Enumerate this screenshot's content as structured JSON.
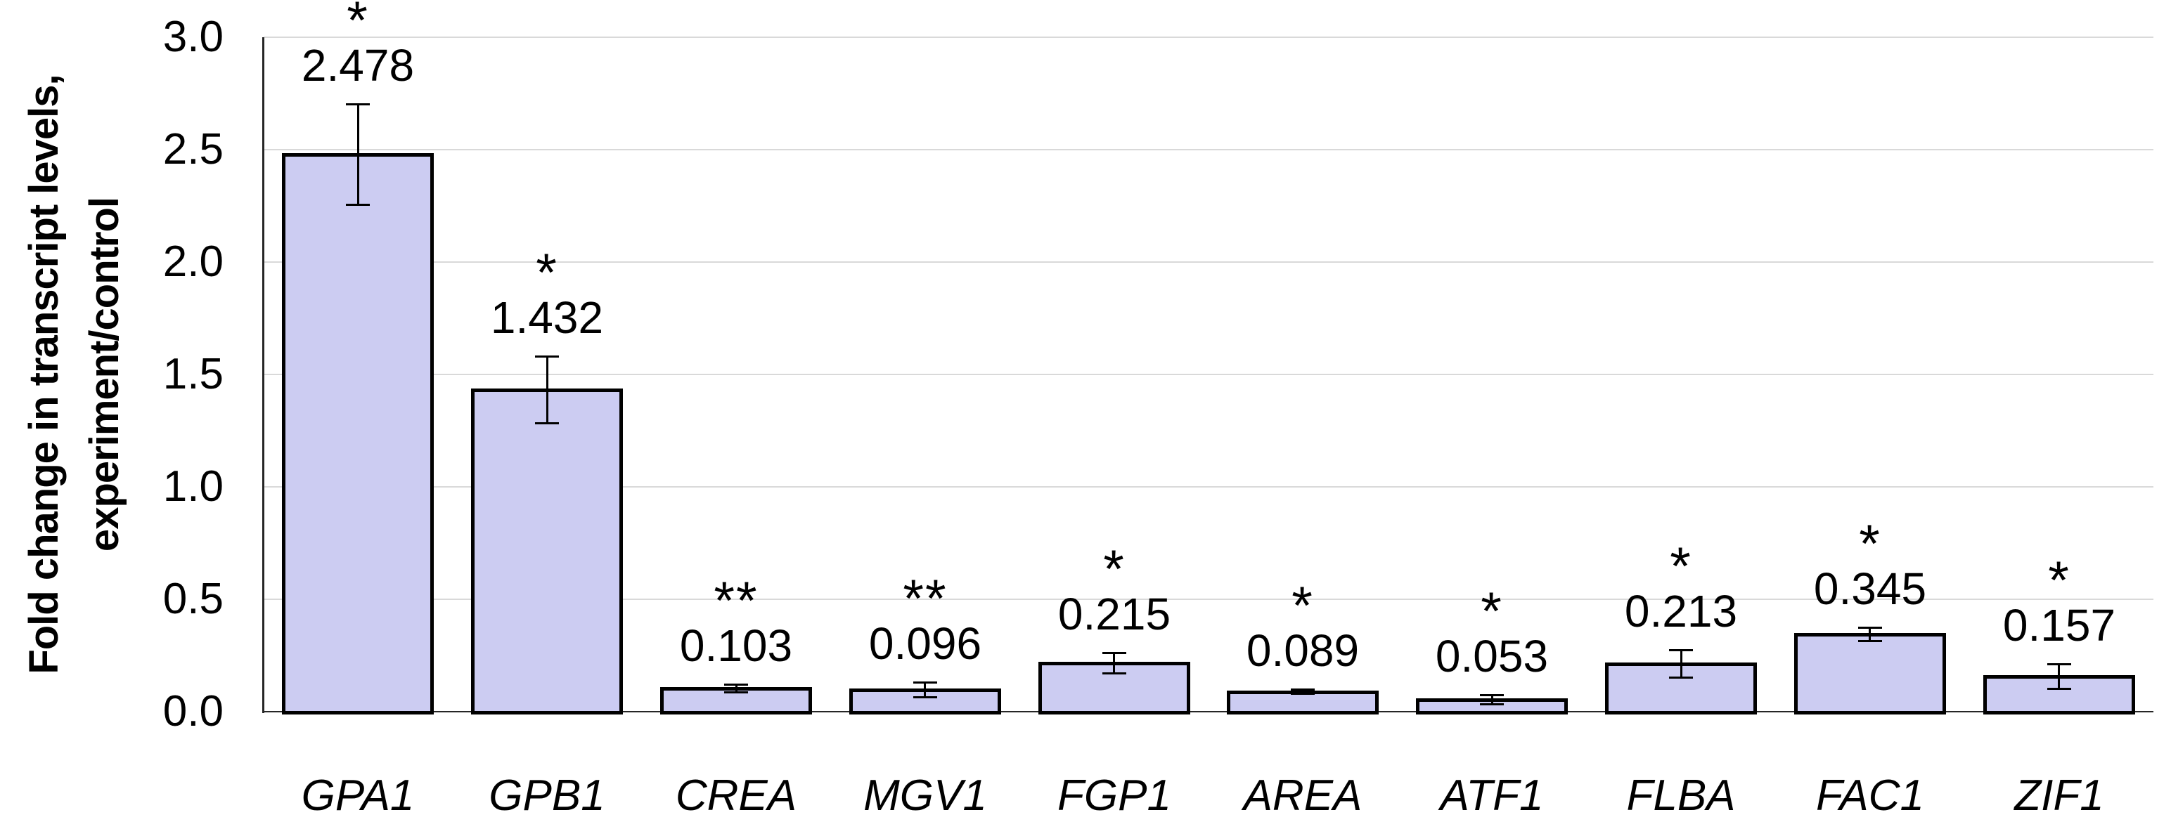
{
  "figure": {
    "background": "#FFFFFF"
  },
  "chart_data": {
    "type": "bar",
    "title": "",
    "ylabel_lines": [
      "Fold change in transcript levels,",
      "experiment/control"
    ],
    "xlabel": "",
    "categories": [
      "GPA1",
      "GPB1",
      "CREA",
      "MGV1",
      "FGP1",
      "AREA",
      "ATF1",
      "FLBA",
      "FAC1",
      "ZIF1"
    ],
    "values": [
      2.478,
      1.432,
      0.103,
      0.096,
      0.215,
      0.089,
      0.053,
      0.213,
      0.345,
      0.157
    ],
    "value_labels": [
      "2.478",
      "1.432",
      "0.103",
      "0.096",
      "0.215",
      "0.089",
      "0.053",
      "0.213",
      "0.345",
      "0.157"
    ],
    "errors": [
      0.225,
      0.15,
      0.02,
      0.035,
      0.047,
      0.01,
      0.022,
      0.062,
      0.031,
      0.057
    ],
    "significance": [
      "*",
      "*",
      "**",
      "**",
      "*",
      "*",
      "*",
      "*",
      "*",
      "*"
    ],
    "ylim": [
      0.0,
      3.0
    ],
    "ytick_step": 0.5,
    "ytick_labels": [
      "0.0",
      "0.5",
      "1.0",
      "1.5",
      "2.0",
      "2.5",
      "3.0"
    ],
    "grid": true,
    "legend": null,
    "category_style": "italic",
    "colors": {
      "bar_fill": "#CCCCF2",
      "bar_border": "#000000",
      "gridline": "#D9D9D9",
      "axis": "#262626",
      "error_bar": "#000000",
      "text": "#000000"
    }
  }
}
